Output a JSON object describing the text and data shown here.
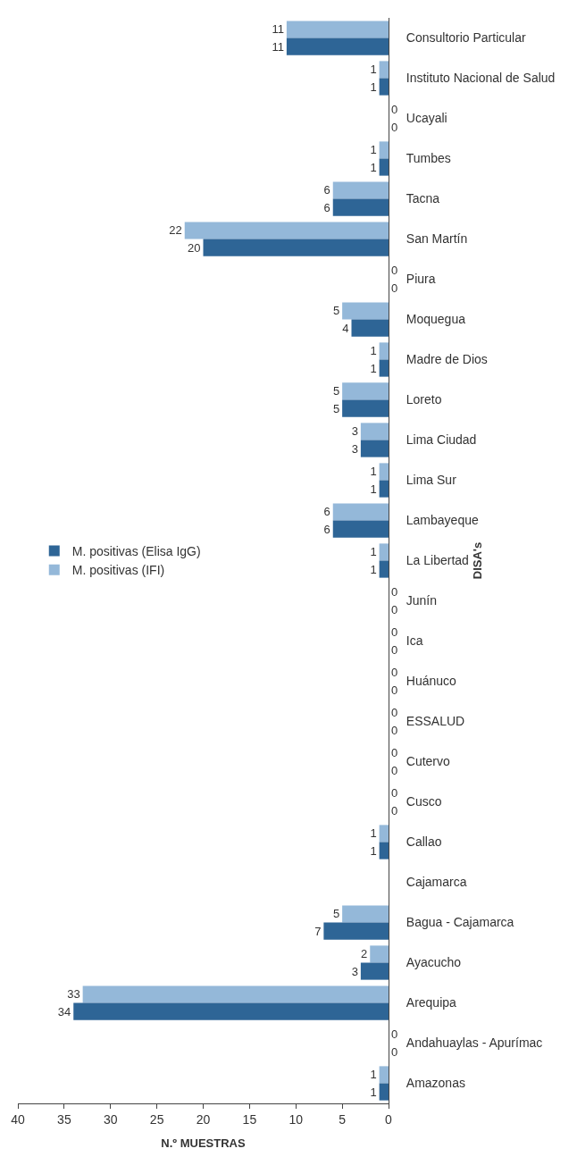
{
  "chart_data": {
    "type": "bar",
    "orientation": "horizontal",
    "xlabel": "N.º MUESTRAS",
    "ylabel": "DISA's",
    "categories": [
      "Consultorio Particular",
      "Instituto Nacional de Salud",
      "Ucayali",
      "Tumbes",
      "Tacna",
      "San Martín",
      "Piura",
      "Moquegua",
      "Madre de Dios",
      "Loreto",
      "Lima Ciudad",
      "Lima Sur",
      "Lambayeque",
      "La Libertad",
      "Junín",
      "Ica",
      "Huánuco",
      "ESSALUD",
      "Cutervo",
      "Cusco",
      "Callao",
      "Cajamarca",
      "Bagua - Cajamarca",
      "Ayacucho",
      "Arequipa",
      "Andahuaylas - Apurímac",
      "Amazonas"
    ],
    "series": [
      {
        "name": "M. positivas (Elisa IgG)",
        "color": "#2e6596",
        "values": [
          11,
          1,
          0,
          1,
          6,
          20,
          0,
          4,
          1,
          5,
          3,
          1,
          6,
          1,
          0,
          0,
          0,
          0,
          0,
          0,
          1,
          0,
          7,
          3,
          34,
          0,
          1
        ],
        "value_labels": [
          "11",
          "1",
          "0",
          "1",
          "6",
          "20",
          "0",
          "4",
          "1",
          "5",
          "3",
          "1",
          "6",
          "1",
          "0",
          "0",
          "0",
          "0",
          "0",
          "0",
          "1",
          null,
          "7",
          "3",
          "34",
          "0",
          "1"
        ]
      },
      {
        "name": "M. positivas (IFI)",
        "color": "#94b8d9",
        "values": [
          11,
          1,
          0,
          1,
          6,
          22,
          0,
          5,
          1,
          5,
          3,
          1,
          6,
          1,
          0,
          0,
          0,
          0,
          0,
          0,
          1,
          0,
          5,
          2,
          33,
          0,
          1
        ],
        "value_labels": [
          "11",
          "1",
          "0",
          "1",
          "6",
          "22",
          "0",
          "5",
          "1",
          "5",
          "3",
          "1",
          "6",
          "1",
          "0",
          "0",
          "0",
          "0",
          "0",
          "0",
          "1",
          null,
          "5",
          "2",
          "33",
          "0",
          "1"
        ]
      }
    ],
    "xlim": [
      40,
      0
    ],
    "xticks": [
      0,
      5,
      10,
      15,
      20,
      25,
      30,
      35,
      40
    ],
    "legend": "left"
  }
}
